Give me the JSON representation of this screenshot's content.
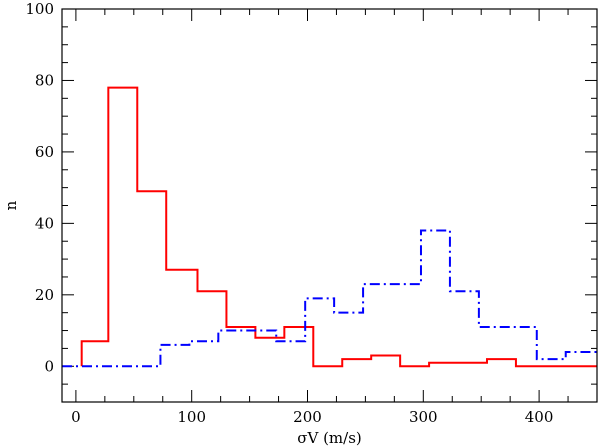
{
  "chart_data": {
    "type": "step",
    "xlabel": "σV  (m/s)",
    "ylabel": "n",
    "xlim": [
      -12,
      450
    ],
    "ylim": [
      -10,
      100
    ],
    "x_major_ticks": [
      0,
      100,
      200,
      300,
      400
    ],
    "x_minor_step": 25,
    "y_major_ticks": [
      0,
      20,
      40,
      60,
      80,
      100
    ],
    "y_minor_step": 5,
    "grid": false,
    "legend": "none",
    "series": [
      {
        "color": "#ff0000",
        "style": "solid",
        "bins": [
          {
            "x0": 5,
            "x1": 28,
            "y": 7
          },
          {
            "x0": 28,
            "x1": 53,
            "y": 78
          },
          {
            "x0": 53,
            "x1": 78,
            "y": 49
          },
          {
            "x0": 78,
            "x1": 105,
            "y": 27
          },
          {
            "x0": 105,
            "x1": 130,
            "y": 21
          },
          {
            "x0": 130,
            "x1": 155,
            "y": 11
          },
          {
            "x0": 155,
            "x1": 180,
            "y": 8
          },
          {
            "x0": 180,
            "x1": 205,
            "y": 11
          },
          {
            "x0": 205,
            "x1": 230,
            "y": 0
          },
          {
            "x0": 230,
            "x1": 255,
            "y": 2
          },
          {
            "x0": 255,
            "x1": 280,
            "y": 3
          },
          {
            "x0": 280,
            "x1": 305,
            "y": 0
          },
          {
            "x0": 305,
            "x1": 330,
            "y": 1
          },
          {
            "x0": 330,
            "x1": 355,
            "y": 1
          },
          {
            "x0": 355,
            "x1": 380,
            "y": 2
          },
          {
            "x0": 380,
            "x1": 450,
            "y": 0
          }
        ]
      },
      {
        "color": "#0000ff",
        "style": "dash-dot",
        "bins": [
          {
            "x0": -12,
            "x1": 73,
            "y": 0
          },
          {
            "x0": 73,
            "x1": 98,
            "y": 6
          },
          {
            "x0": 98,
            "x1": 123,
            "y": 7
          },
          {
            "x0": 123,
            "x1": 148,
            "y": 10
          },
          {
            "x0": 148,
            "x1": 173,
            "y": 10
          },
          {
            "x0": 173,
            "x1": 198,
            "y": 7
          },
          {
            "x0": 198,
            "x1": 223,
            "y": 19
          },
          {
            "x0": 223,
            "x1": 248,
            "y": 15
          },
          {
            "x0": 248,
            "x1": 273,
            "y": 23
          },
          {
            "x0": 273,
            "x1": 298,
            "y": 23
          },
          {
            "x0": 298,
            "x1": 323,
            "y": 38
          },
          {
            "x0": 323,
            "x1": 348,
            "y": 21
          },
          {
            "x0": 348,
            "x1": 373,
            "y": 11
          },
          {
            "x0": 373,
            "x1": 398,
            "y": 11
          },
          {
            "x0": 398,
            "x1": 423,
            "y": 2
          },
          {
            "x0": 423,
            "x1": 450,
            "y": 4
          }
        ]
      }
    ]
  }
}
